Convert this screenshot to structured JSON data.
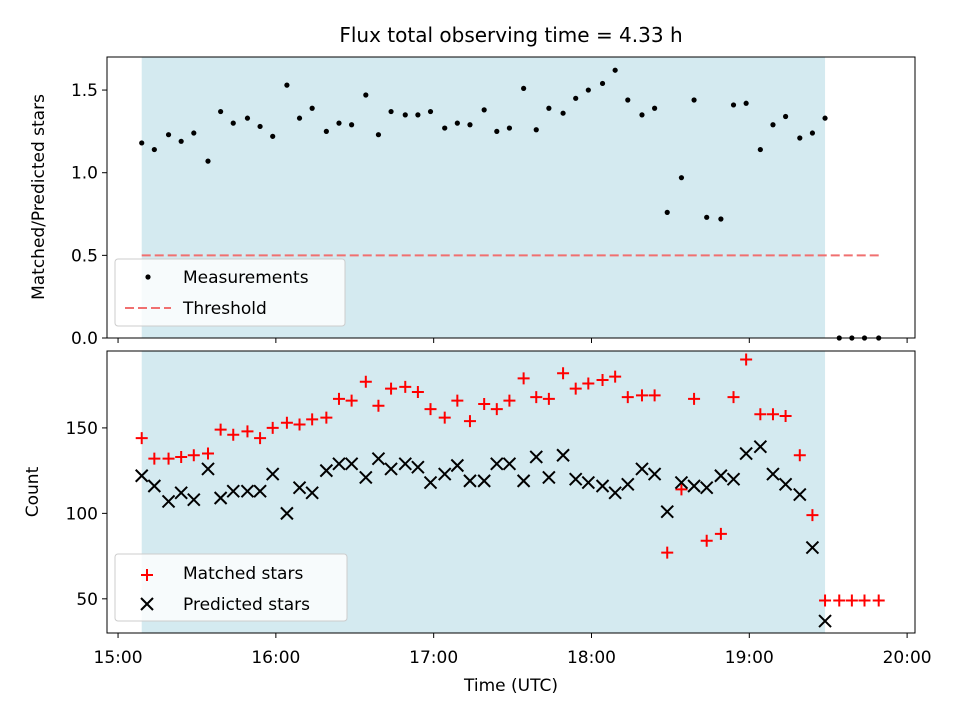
{
  "chart_data": {
    "title": "Flux total observing time = 4.33 h",
    "xlabel": "Time (UTC)",
    "x_ticks": [
      "15:00",
      "16:00",
      "17:00",
      "18:00",
      "19:00",
      "20:00"
    ],
    "x_range_hours": [
      14.93,
      20.05
    ],
    "observing_window_hours": [
      15.15,
      19.48
    ],
    "window_color": "#d4eaf0",
    "panels": [
      {
        "type": "scatter",
        "ylabel": "Matched/Predicted stars",
        "ylim": [
          0,
          1.7
        ],
        "y_ticks": [
          "0.0",
          "0.5",
          "1.0",
          "1.5"
        ],
        "legend_position": "lower-left",
        "series": [
          {
            "name": "Measurements",
            "marker": "dot",
            "color": "#000000",
            "x": [
              15.15,
              15.23,
              15.32,
              15.4,
              15.48,
              15.57,
              15.65,
              15.73,
              15.82,
              15.9,
              15.98,
              16.07,
              16.15,
              16.23,
              16.32,
              16.4,
              16.48,
              16.57,
              16.65,
              16.73,
              16.82,
              16.9,
              16.98,
              17.07,
              17.15,
              17.23,
              17.32,
              17.4,
              17.48,
              17.57,
              17.65,
              17.73,
              17.82,
              17.9,
              17.98,
              18.07,
              18.15,
              18.23,
              18.32,
              18.4,
              18.48,
              18.57,
              18.65,
              18.73,
              18.82,
              18.9,
              18.98,
              19.07,
              19.15,
              19.23,
              19.32,
              19.4,
              19.48,
              19.57,
              19.65,
              19.73,
              19.82
            ],
            "y": [
              1.18,
              1.14,
              1.23,
              1.19,
              1.24,
              1.07,
              1.37,
              1.3,
              1.33,
              1.28,
              1.22,
              1.53,
              1.33,
              1.39,
              1.25,
              1.3,
              1.29,
              1.47,
              1.23,
              1.37,
              1.35,
              1.35,
              1.37,
              1.27,
              1.3,
              1.29,
              1.38,
              1.25,
              1.27,
              1.51,
              1.26,
              1.39,
              1.36,
              1.45,
              1.5,
              1.54,
              1.62,
              1.44,
              1.35,
              1.39,
              0.76,
              0.97,
              1.44,
              0.73,
              0.72,
              1.41,
              1.42,
              1.14,
              1.29,
              1.34,
              1.21,
              1.24,
              1.33,
              0.0,
              0.0,
              0.0,
              0.0
            ]
          },
          {
            "name": "Threshold",
            "type": "line",
            "style": "dashed",
            "color": "#f07070",
            "x": [
              15.15,
              19.82
            ],
            "y": [
              0.5,
              0.5
            ]
          }
        ]
      },
      {
        "type": "scatter",
        "ylabel": "Count",
        "ylim": [
          30,
          195
        ],
        "y_ticks": [
          "50",
          "100",
          "150"
        ],
        "legend_position": "lower-left",
        "series": [
          {
            "name": "Matched stars",
            "marker": "plus",
            "color": "#ff0000",
            "x": [
              15.15,
              15.23,
              15.32,
              15.4,
              15.48,
              15.57,
              15.65,
              15.73,
              15.82,
              15.9,
              15.98,
              16.07,
              16.15,
              16.23,
              16.32,
              16.4,
              16.48,
              16.57,
              16.65,
              16.73,
              16.82,
              16.9,
              16.98,
              17.07,
              17.15,
              17.23,
              17.32,
              17.4,
              17.48,
              17.57,
              17.65,
              17.73,
              17.82,
              17.9,
              17.98,
              18.07,
              18.15,
              18.23,
              18.32,
              18.4,
              18.48,
              18.57,
              18.65,
              18.73,
              18.82,
              18.9,
              18.98,
              19.07,
              19.15,
              19.23,
              19.32,
              19.4,
              19.48,
              19.57,
              19.65,
              19.73,
              19.82
            ],
            "y": [
              144,
              132,
              132,
              133,
              134,
              135,
              149,
              146,
              148,
              144,
              150,
              153,
              152,
              155,
              156,
              167,
              166,
              177,
              163,
              173,
              174,
              171,
              161,
              156,
              166,
              154,
              164,
              161,
              166,
              179,
              168,
              167,
              182,
              173,
              176,
              178,
              180,
              168,
              169,
              169,
              77,
              114,
              167,
              84,
              88,
              168,
              190,
              158,
              158,
              157,
              134,
              99,
              49,
              49,
              49,
              49,
              49
            ]
          },
          {
            "name": "Predicted stars",
            "marker": "x",
            "color": "#000000",
            "x": [
              15.15,
              15.23,
              15.32,
              15.4,
              15.48,
              15.57,
              15.65,
              15.73,
              15.82,
              15.9,
              15.98,
              16.07,
              16.15,
              16.23,
              16.32,
              16.4,
              16.48,
              16.57,
              16.65,
              16.73,
              16.82,
              16.9,
              16.98,
              17.07,
              17.15,
              17.23,
              17.32,
              17.4,
              17.48,
              17.57,
              17.65,
              17.73,
              17.82,
              17.9,
              17.98,
              18.07,
              18.15,
              18.23,
              18.32,
              18.4,
              18.48,
              18.57,
              18.65,
              18.73,
              18.82,
              18.9,
              18.98,
              19.07,
              19.15,
              19.23,
              19.32,
              19.4,
              19.48
            ],
            "y": [
              122,
              116,
              107,
              112,
              108,
              126,
              109,
              113,
              113,
              113,
              123,
              100,
              115,
              112,
              125,
              129,
              129,
              121,
              132,
              126,
              129,
              127,
              118,
              123,
              128,
              119,
              119,
              129,
              129,
              119,
              133,
              121,
              134,
              120,
              118,
              116,
              112,
              117,
              126,
              123,
              101,
              118,
              116,
              115,
              122,
              120,
              135,
              139,
              123,
              117,
              111,
              80,
              37
            ]
          }
        ]
      }
    ]
  }
}
